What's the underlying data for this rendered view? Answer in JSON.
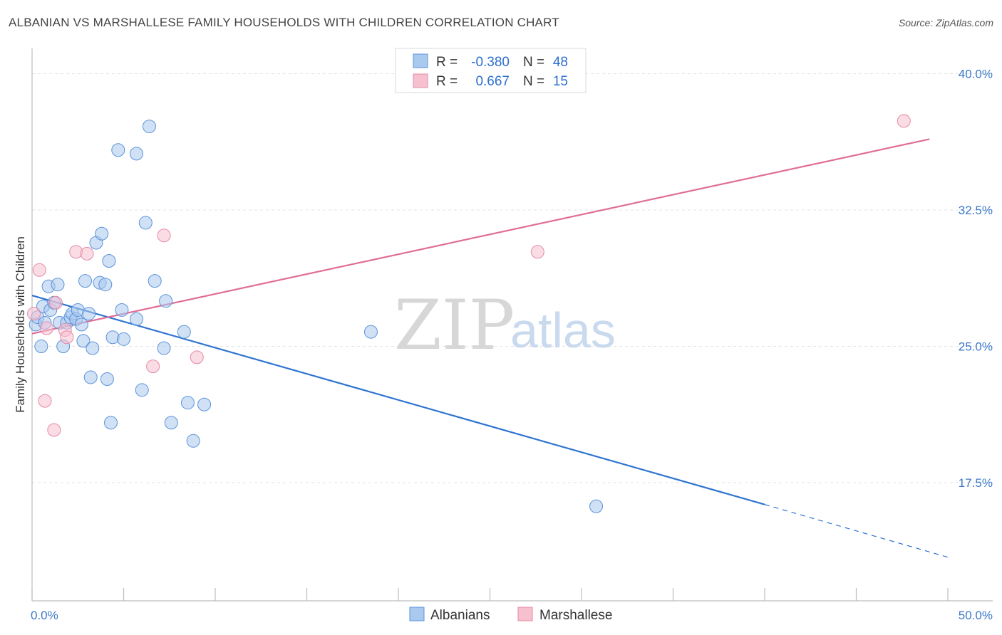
{
  "title": "ALBANIAN VS MARSHALLESE FAMILY HOUSEHOLDS WITH CHILDREN CORRELATION CHART",
  "source": "Source: ZipAtlas.com",
  "colors": {
    "albanian_fill": "#a9c9ef",
    "albanian_stroke": "#5b93d8",
    "albanian_line": "#2f74d0",
    "marshallese_fill": "#f6c0cf",
    "marshallese_stroke": "#e58aa6",
    "marshallese_line": "#e06d96",
    "accent_text": "#3a78c9"
  },
  "legend": {
    "r_label": "R =",
    "n_label": "N =",
    "rows": [
      {
        "name": "Albanians",
        "r": "-0.380",
        "n": "48"
      },
      {
        "name": "Marshallese",
        "r": "0.667",
        "n": "15"
      }
    ]
  },
  "watermark": {
    "zip": "ZIP",
    "atlas": "atlas"
  },
  "chart_data": {
    "type": "scatter",
    "title": "ALBANIAN VS MARSHALLESE FAMILY HOUSEHOLDS WITH CHILDREN CORRELATION CHART",
    "xlabel": "",
    "ylabel": "Family Households with Children",
    "xlim": [
      0,
      50
    ],
    "ylim": [
      11.0,
      41.0
    ],
    "x_tick_labels": [
      "0.0%",
      "50.0%"
    ],
    "y_ticks": [
      17.5,
      25.0,
      32.5,
      40.0
    ],
    "y_tick_labels": [
      "17.5%",
      "25.0%",
      "32.5%",
      "40.0%"
    ],
    "grid": true,
    "series": [
      {
        "name": "Albanians",
        "points": [
          [
            0.2,
            26.2
          ],
          [
            0.3,
            26.6
          ],
          [
            0.5,
            25.0
          ],
          [
            0.6,
            27.2
          ],
          [
            0.7,
            26.3
          ],
          [
            0.9,
            28.3
          ],
          [
            1.0,
            27.0
          ],
          [
            1.2,
            27.4
          ],
          [
            1.4,
            28.4
          ],
          [
            1.5,
            26.3
          ],
          [
            1.7,
            25.0
          ],
          [
            1.9,
            26.3
          ],
          [
            2.1,
            26.6
          ],
          [
            2.2,
            26.8
          ],
          [
            2.4,
            26.5
          ],
          [
            2.5,
            27.0
          ],
          [
            2.7,
            26.2
          ],
          [
            2.8,
            25.3
          ],
          [
            2.9,
            28.6
          ],
          [
            3.1,
            26.8
          ],
          [
            3.2,
            23.3
          ],
          [
            3.3,
            24.9
          ],
          [
            3.5,
            30.7
          ],
          [
            3.7,
            28.5
          ],
          [
            3.8,
            31.2
          ],
          [
            4.0,
            28.4
          ],
          [
            4.1,
            23.2
          ],
          [
            4.2,
            29.7
          ],
          [
            4.3,
            20.8
          ],
          [
            4.4,
            25.5
          ],
          [
            4.7,
            35.8
          ],
          [
            4.9,
            27.0
          ],
          [
            5.0,
            25.4
          ],
          [
            5.7,
            26.5
          ],
          [
            5.7,
            35.6
          ],
          [
            6.0,
            22.6
          ],
          [
            6.2,
            31.8
          ],
          [
            6.4,
            37.1
          ],
          [
            6.7,
            28.6
          ],
          [
            7.2,
            24.9
          ],
          [
            7.3,
            27.5
          ],
          [
            7.6,
            20.8
          ],
          [
            8.3,
            25.8
          ],
          [
            8.5,
            21.9
          ],
          [
            8.8,
            19.8
          ],
          [
            9.4,
            21.8
          ],
          [
            18.5,
            25.8
          ],
          [
            30.8,
            16.2
          ]
        ],
        "trendline": {
          "x": [
            0,
            40
          ],
          "y": [
            27.8,
            16.3
          ],
          "dashed_extension_to_x": 50,
          "dashed_end_y": 13.4
        }
      },
      {
        "name": "Marshallese",
        "points": [
          [
            0.1,
            26.8
          ],
          [
            0.4,
            29.2
          ],
          [
            0.7,
            22.0
          ],
          [
            0.8,
            26.0
          ],
          [
            1.2,
            20.4
          ],
          [
            1.3,
            27.4
          ],
          [
            1.8,
            25.9
          ],
          [
            1.9,
            25.5
          ],
          [
            2.4,
            30.2
          ],
          [
            3.0,
            30.1
          ],
          [
            6.6,
            23.9
          ],
          [
            7.2,
            31.1
          ],
          [
            9.0,
            24.4
          ],
          [
            27.6,
            30.2
          ],
          [
            47.6,
            37.4
          ]
        ],
        "trendline": {
          "x": [
            0,
            49
          ],
          "y": [
            25.7,
            36.4
          ]
        }
      }
    ],
    "legend_position": "top-center"
  }
}
